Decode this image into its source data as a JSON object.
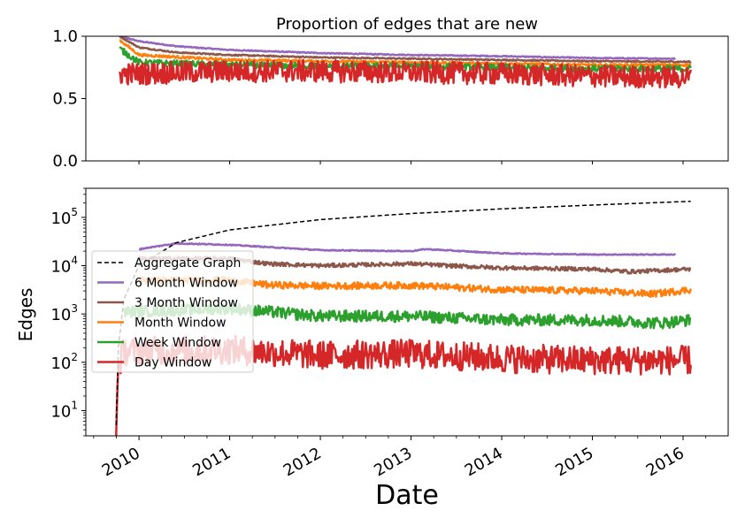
{
  "chart_data": [
    {
      "type": "line",
      "title": "Proportion of edges that are new",
      "xlabel": "",
      "ylabel": "",
      "xlim": [
        "2009-06-01",
        "2016-07-01"
      ],
      "ylim": [
        0.0,
        1.0
      ],
      "yticks": [
        {
          "v": 0.0,
          "label": "0.0"
        },
        {
          "v": 0.5,
          "label": "0.5"
        },
        {
          "v": 1.0,
          "label": "1.0"
        }
      ],
      "series": [
        {
          "key": "sixmonth",
          "color": "#9467bd",
          "width": 2.5,
          "noise": 0.004,
          "points": [
            [
              "2009-10-15",
              1.0
            ],
            [
              "2010-01-01",
              0.96
            ],
            [
              "2010-06-01",
              0.92
            ],
            [
              "2011-01-01",
              0.89
            ],
            [
              "2012-01-01",
              0.865
            ],
            [
              "2013-01-01",
              0.85
            ],
            [
              "2014-01-01",
              0.84
            ],
            [
              "2015-01-01",
              0.825
            ],
            [
              "2015-12-01",
              0.82
            ]
          ]
        },
        {
          "key": "threemonth",
          "color": "#8c564b",
          "width": 2.5,
          "noise": 0.005,
          "points": [
            [
              "2009-10-15",
              1.0
            ],
            [
              "2010-01-01",
              0.91
            ],
            [
              "2010-06-01",
              0.87
            ],
            [
              "2011-01-01",
              0.85
            ],
            [
              "2012-01-01",
              0.83
            ],
            [
              "2013-01-01",
              0.82
            ],
            [
              "2014-01-01",
              0.81
            ],
            [
              "2015-01-01",
              0.8
            ],
            [
              "2016-02-01",
              0.795
            ]
          ]
        },
        {
          "key": "month",
          "color": "#ff7f0e",
          "width": 2.5,
          "noise": 0.01,
          "points": [
            [
              "2009-10-15",
              0.97
            ],
            [
              "2010-01-01",
              0.85
            ],
            [
              "2011-01-01",
              0.81
            ],
            [
              "2012-01-01",
              0.8
            ],
            [
              "2013-01-01",
              0.79
            ],
            [
              "2014-01-01",
              0.78
            ],
            [
              "2015-01-01",
              0.77
            ],
            [
              "2016-02-01",
              0.77
            ]
          ]
        },
        {
          "key": "week",
          "color": "#2ca02c",
          "width": 2.5,
          "noise": 0.025,
          "points": [
            [
              "2009-10-15",
              0.9
            ],
            [
              "2010-01-01",
              0.79
            ],
            [
              "2011-01-01",
              0.77
            ],
            [
              "2012-01-01",
              0.76
            ],
            [
              "2013-01-01",
              0.76
            ],
            [
              "2014-01-01",
              0.75
            ],
            [
              "2015-01-01",
              0.74
            ],
            [
              "2016-02-01",
              0.74
            ]
          ]
        },
        {
          "key": "day",
          "color": "#d62728",
          "width": 2.5,
          "noise": 0.09,
          "points": [
            [
              "2009-10-15",
              0.7
            ],
            [
              "2010-01-01",
              0.7
            ],
            [
              "2011-01-01",
              0.72
            ],
            [
              "2012-01-01",
              0.72
            ],
            [
              "2013-01-01",
              0.71
            ],
            [
              "2014-01-01",
              0.7
            ],
            [
              "2015-01-01",
              0.68
            ],
            [
              "2016-02-01",
              0.67
            ]
          ]
        }
      ]
    },
    {
      "type": "line",
      "title": "",
      "xlabel": "Date",
      "ylabel": "Edges",
      "yscale": "log",
      "xlim": [
        "2009-06-01",
        "2016-07-01"
      ],
      "ylim": [
        3,
        400000
      ],
      "yticks": [
        {
          "v": 10,
          "base": "10",
          "exp": "1"
        },
        {
          "v": 100,
          "base": "10",
          "exp": "2"
        },
        {
          "v": 1000,
          "base": "10",
          "exp": "3"
        },
        {
          "v": 10000,
          "base": "10",
          "exp": "4"
        },
        {
          "v": 100000,
          "base": "10",
          "exp": "5"
        }
      ],
      "xticks": [
        "2010",
        "2011",
        "2012",
        "2013",
        "2014",
        "2015",
        "2016"
      ],
      "legend": {
        "placement": "center-left",
        "entries": [
          {
            "key": "aggregate",
            "label": "Aggregate Graph"
          },
          {
            "key": "sixmonth",
            "label": "6 Month Window"
          },
          {
            "key": "threemonth",
            "label": "3 Month Window"
          },
          {
            "key": "month",
            "label": "Month Window"
          },
          {
            "key": "week",
            "label": "Week Window"
          },
          {
            "key": "day",
            "label": "Day Window"
          }
        ]
      },
      "series": [
        {
          "key": "aggregate",
          "name": "Aggregate Graph",
          "color": "#000000",
          "width": 1.5,
          "dashed": true,
          "noise": 0,
          "points": [
            [
              "2009-10-01",
              5
            ],
            [
              "2009-10-10",
              200
            ],
            [
              "2009-11-01",
              2000
            ],
            [
              "2010-01-01",
              10000
            ],
            [
              "2010-06-01",
              30000
            ],
            [
              "2011-01-01",
              55000
            ],
            [
              "2012-01-01",
              90000
            ],
            [
              "2013-01-01",
              120000
            ],
            [
              "2014-01-01",
              150000
            ],
            [
              "2015-01-01",
              180000
            ],
            [
              "2016-02-01",
              215000
            ]
          ]
        },
        {
          "key": "sixmonth",
          "name": "6 Month Window",
          "color": "#9467bd",
          "width": 2.5,
          "noise": 0.01,
          "points": [
            [
              "2010-01-01",
              22000
            ],
            [
              "2010-06-01",
              29000
            ],
            [
              "2011-01-01",
              27000
            ],
            [
              "2012-01-01",
              21000
            ],
            [
              "2013-01-01",
              20000
            ],
            [
              "2013-03-01",
              22000
            ],
            [
              "2014-01-01",
              18000
            ],
            [
              "2015-01-01",
              17000
            ],
            [
              "2015-12-01",
              17000
            ]
          ]
        },
        {
          "key": "threemonth",
          "name": "3 Month Window",
          "color": "#8c564b",
          "width": 2.5,
          "noise": 0.04,
          "points": [
            [
              "2010-01-01",
              14000
            ],
            [
              "2011-01-01",
              14000
            ],
            [
              "2011-06-01",
              11000
            ],
            [
              "2012-01-01",
              10000
            ],
            [
              "2013-01-01",
              11000
            ],
            [
              "2013-06-01",
              10000
            ],
            [
              "2014-01-01",
              9000
            ],
            [
              "2015-01-01",
              8500
            ],
            [
              "2015-06-01",
              7500
            ],
            [
              "2016-02-01",
              8500
            ]
          ]
        },
        {
          "key": "month",
          "name": "Month Window",
          "color": "#ff7f0e",
          "width": 2.5,
          "noise": 0.07,
          "points": [
            [
              "2010-01-01",
              5000
            ],
            [
              "2011-01-01",
              5000
            ],
            [
              "2011-06-01",
              4000
            ],
            [
              "2012-01-01",
              3800
            ],
            [
              "2013-01-01",
              3900
            ],
            [
              "2014-01-01",
              3200
            ],
            [
              "2015-01-01",
              3000
            ],
            [
              "2015-09-01",
              2600
            ],
            [
              "2016-02-01",
              3200
            ]
          ]
        },
        {
          "key": "week",
          "name": "Week Window",
          "color": "#2ca02c",
          "width": 2.5,
          "noise": 0.12,
          "points": [
            [
              "2009-11-01",
              1100
            ],
            [
              "2011-01-01",
              1300
            ],
            [
              "2012-01-01",
              900
            ],
            [
              "2013-01-01",
              900
            ],
            [
              "2014-01-01",
              750
            ],
            [
              "2015-01-01",
              750
            ],
            [
              "2015-10-01",
              650
            ],
            [
              "2016-02-01",
              750
            ]
          ]
        },
        {
          "key": "day",
          "name": "Day Window",
          "color": "#d62728",
          "width": 2.5,
          "noise": 0.3,
          "points": [
            [
              "2009-10-01",
              5
            ],
            [
              "2009-10-10",
              80
            ],
            [
              "2009-11-01",
              170
            ],
            [
              "2011-01-01",
              180
            ],
            [
              "2012-01-01",
              140
            ],
            [
              "2013-01-01",
              150
            ],
            [
              "2014-01-01",
              120
            ],
            [
              "2015-01-01",
              110
            ],
            [
              "2016-02-01",
              110
            ]
          ]
        }
      ]
    }
  ]
}
